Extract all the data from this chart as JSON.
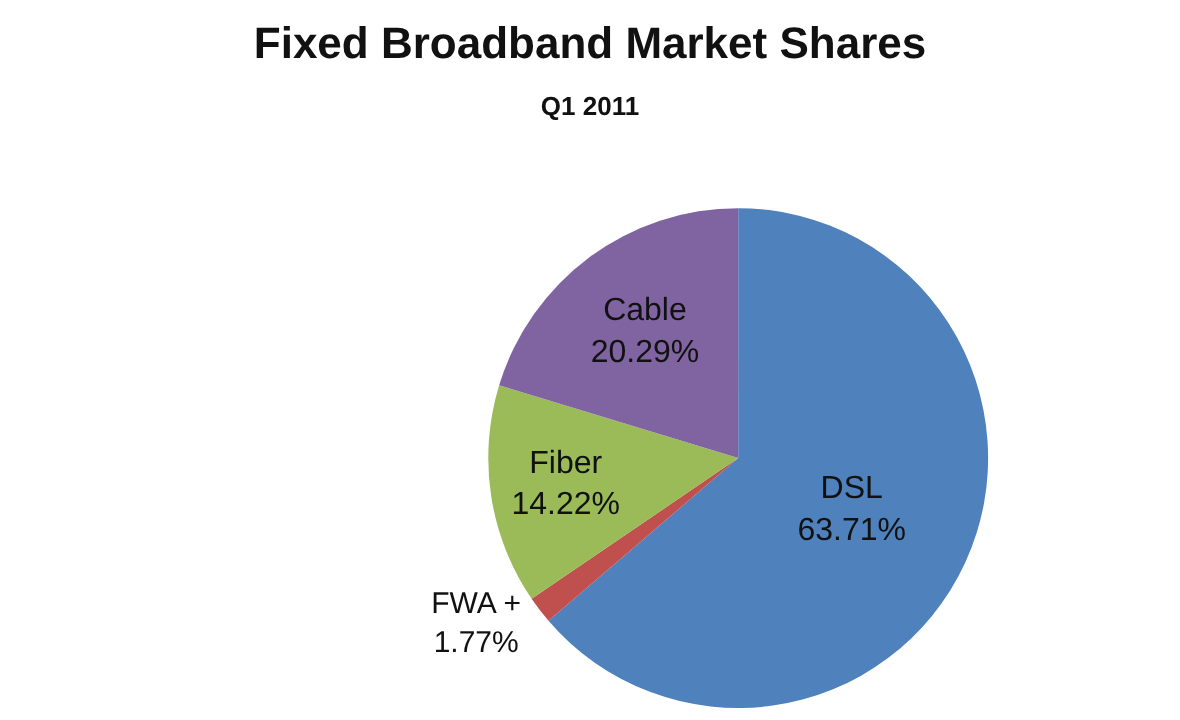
{
  "chart_data": {
    "type": "pie",
    "title": "Fixed Broadband Market Shares",
    "subtitle": "Q1 2011",
    "categories": [
      "DSL",
      "FWA +",
      "Fiber",
      "Cable"
    ],
    "values": [
      63.71,
      1.77,
      14.22,
      20.29
    ],
    "value_labels": [
      "63.71%",
      "1.77%",
      "14.22%",
      "20.29%"
    ],
    "colors": [
      "#4f81bd",
      "#c0504d",
      "#9bbb59",
      "#8064a2"
    ],
    "legend": false
  }
}
